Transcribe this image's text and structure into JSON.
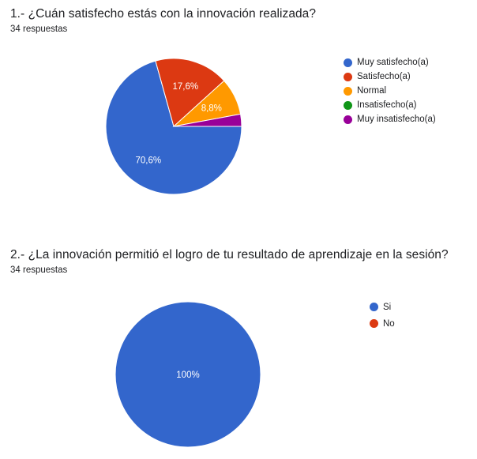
{
  "chart_data": [
    {
      "type": "pie",
      "title": "1.- ¿Cuán satisfecho estás con la innovación realizada?",
      "subtitle": "34 respuestas",
      "categories": [
        "Muy satisfecho(a)",
        "Satisfecho(a)",
        "Normal",
        "Insatisfecho(a)",
        "Muy insatisfecho(a)"
      ],
      "values": [
        70.6,
        17.6,
        8.8,
        0,
        2.9
      ],
      "value_labels": [
        "70,6%",
        "17,6%",
        "8,8%",
        "",
        ""
      ],
      "colors": [
        "#3366cc",
        "#dc3912",
        "#ff9900",
        "#109618",
        "#990099"
      ],
      "legend_position": "right"
    },
    {
      "type": "pie",
      "title": "2.- ¿La innovación permitió el logro de tu resultado de aprendizaje en la sesión?",
      "subtitle": "34 respuestas",
      "categories": [
        "Si",
        "No"
      ],
      "values": [
        100,
        0
      ],
      "value_labels": [
        "100%",
        ""
      ],
      "colors": [
        "#3366cc",
        "#dc3912"
      ],
      "legend_position": "right"
    }
  ]
}
